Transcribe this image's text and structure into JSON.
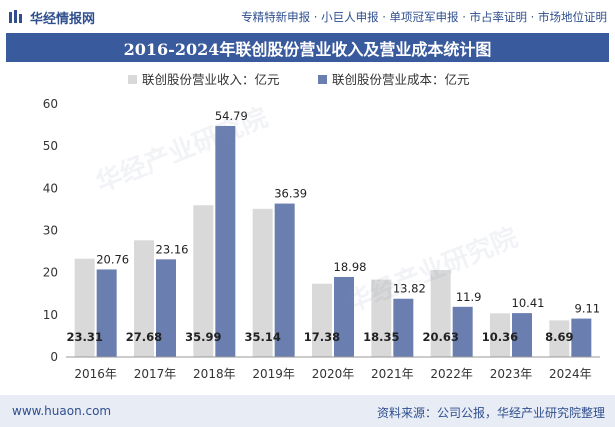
{
  "header": {
    "logo_text": "华经情报网",
    "tags": "专精特新申报 · 小巨人申报 · 单项冠军申报 · 市占率证明 · 市场地位证明"
  },
  "title": "2016-2024年联创股份营业收入及营业成本统计图",
  "footer": {
    "website": "www.huaon.com",
    "source": "资料来源：公司公报，华经产业研究院整理"
  },
  "colors": {
    "revenue": "#d9d9d9",
    "cost": "#6a7fb0",
    "brand": "#3a5a9e"
  },
  "chart_data": {
    "type": "bar",
    "title": "2016-2024年联创股份营业收入及营业成本统计图",
    "categories": [
      "2016年",
      "2017年",
      "2018年",
      "2019年",
      "2020年",
      "2021年",
      "2022年",
      "2023年",
      "2024年"
    ],
    "series": [
      {
        "name": "联创股份营业收入：亿元",
        "values": [
          23.31,
          27.68,
          35.99,
          35.14,
          17.38,
          18.35,
          20.63,
          10.36,
          8.69
        ]
      },
      {
        "name": "联创股份营业成本：亿元",
        "values": [
          20.76,
          23.16,
          54.79,
          36.39,
          18.98,
          13.82,
          11.9,
          10.41,
          9.11
        ]
      }
    ],
    "value_labels": [
      [
        "23.31",
        "27.68",
        "35.99",
        "35.14",
        "17.38",
        "18.35",
        "20.63",
        "10.36",
        "8.69"
      ],
      [
        "20.76",
        "23.16",
        "54.79",
        "36.39",
        "18.98",
        "13.82",
        "11.9",
        "10.41",
        "9.11"
      ]
    ],
    "yticks": [
      "0",
      "10",
      "20",
      "30",
      "40",
      "50",
      "60"
    ],
    "ylim": [
      0,
      60
    ],
    "legend_position": "top",
    "xlabel": "",
    "ylabel": ""
  }
}
